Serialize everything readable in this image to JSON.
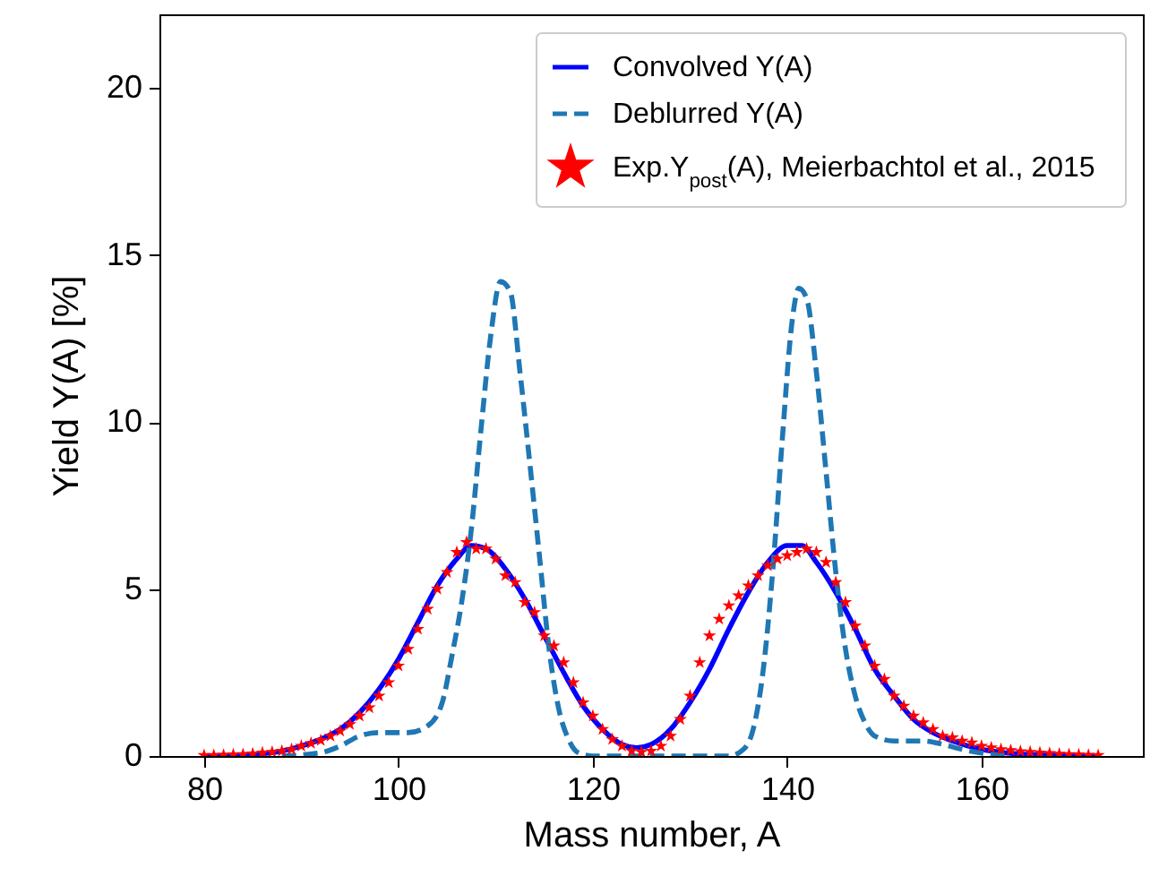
{
  "chart_data": {
    "type": "line",
    "xlabel": "Mass number, A",
    "ylabel": "Yield Y(A) [%]",
    "xlim": [
      75.4,
      176.6
    ],
    "ylim": [
      0,
      22.2
    ],
    "xticks": [
      80,
      100,
      120,
      140,
      160
    ],
    "yticks": [
      0,
      5,
      10,
      15,
      20
    ],
    "grid": false,
    "legend": "top right",
    "series": [
      {
        "name": "Convolved Y(A)",
        "marker": "none",
        "line_style": "solid",
        "color": "#0000ff",
        "x": [
          80,
          85,
          88,
          90,
          92,
          94,
          96,
          98,
          100,
          102,
          104,
          106,
          107.5,
          109,
          111,
          113,
          115,
          117,
          119,
          121,
          123,
          124.5,
          126,
          128,
          130,
          132,
          134,
          136,
          138,
          140,
          141.5,
          143,
          145,
          147,
          149,
          151,
          153,
          155,
          157,
          160,
          163,
          166,
          172
        ],
        "values": [
          0,
          0.05,
          0.15,
          0.3,
          0.5,
          0.8,
          1.3,
          2.0,
          2.9,
          4.0,
          5.1,
          5.9,
          6.3,
          6.2,
          5.6,
          4.7,
          3.6,
          2.5,
          1.5,
          0.8,
          0.35,
          0.25,
          0.35,
          0.8,
          1.6,
          2.6,
          3.8,
          4.9,
          5.8,
          6.3,
          6.3,
          5.8,
          4.9,
          3.8,
          2.6,
          1.8,
          1.1,
          0.7,
          0.45,
          0.2,
          0.08,
          0.03,
          0
        ]
      },
      {
        "name": "Deblurred Y(A)",
        "marker": "none",
        "line_style": "dashed",
        "color": "#1f77b4",
        "x": [
          88,
          92,
          94,
          96,
          98,
          101,
          103,
          104.5,
          105.5,
          106.5,
          107.5,
          108.5,
          109.5,
          110.5,
          111.5,
          112.5,
          113.5,
          114.5,
          115.5,
          116.5,
          117.5,
          118.5,
          120,
          134,
          135.5,
          136.5,
          137.5,
          138.5,
          139.5,
          140.5,
          141.2,
          142,
          143,
          144,
          145,
          146,
          147,
          148,
          149,
          151,
          154,
          156,
          158,
          161,
          163
        ],
        "values": [
          0,
          0.1,
          0.3,
          0.6,
          0.7,
          0.7,
          0.9,
          1.6,
          3.0,
          4.6,
          6.8,
          9.8,
          12.6,
          14.2,
          13.9,
          11.5,
          8.8,
          6.0,
          3.2,
          1.4,
          0.5,
          0.1,
          0,
          0,
          0.2,
          0.8,
          2.5,
          5.5,
          9.5,
          13,
          14,
          13.7,
          11.5,
          8.5,
          5.5,
          3.2,
          1.8,
          1.0,
          0.6,
          0.45,
          0.45,
          0.35,
          0.2,
          0.05,
          0
        ]
      },
      {
        "name": "Exp.Y$_{post}$(A), Meierbachtol et al., 2015",
        "type": "scatter",
        "marker": "star",
        "color": "#ff0000",
        "x": [
          80,
          81,
          82,
          83,
          84,
          85,
          86,
          87,
          88,
          89,
          90,
          91,
          92,
          93,
          94,
          95,
          96,
          97,
          98,
          99,
          100,
          101,
          102,
          103,
          104,
          105,
          106,
          107,
          108,
          109,
          110,
          111,
          112,
          113,
          114,
          115,
          116,
          117,
          118,
          119,
          120,
          121,
          122,
          123,
          124,
          125,
          126,
          127,
          128,
          129,
          130,
          131,
          132,
          133,
          134,
          135,
          136,
          137,
          138,
          139,
          140,
          141,
          142,
          143,
          144,
          145,
          146,
          147,
          148,
          149,
          150,
          151,
          152,
          153,
          154,
          155,
          156,
          157,
          158,
          159,
          160,
          161,
          162,
          163,
          164,
          165,
          166,
          167,
          168,
          169,
          170,
          171,
          172
        ],
        "values": [
          0.02,
          0.02,
          0.03,
          0.04,
          0.05,
          0.07,
          0.1,
          0.12,
          0.15,
          0.2,
          0.3,
          0.38,
          0.47,
          0.6,
          0.75,
          0.95,
          1.2,
          1.45,
          1.8,
          2.2,
          2.7,
          3.2,
          3.8,
          4.4,
          5.0,
          5.5,
          6.1,
          6.4,
          6.2,
          6.2,
          5.9,
          5.4,
          5.2,
          4.6,
          4.3,
          3.6,
          3.3,
          2.8,
          2.2,
          1.6,
          1.2,
          0.8,
          0.5,
          0.3,
          0.15,
          0.12,
          0.15,
          0.3,
          0.6,
          1.1,
          1.8,
          2.8,
          3.6,
          4.1,
          4.5,
          4.8,
          5.1,
          5.4,
          5.7,
          5.9,
          6.0,
          6.1,
          6.2,
          6.1,
          5.8,
          5.2,
          4.6,
          3.9,
          3.3,
          2.7,
          2.3,
          1.8,
          1.5,
          1.2,
          1.0,
          0.8,
          0.6,
          0.55,
          0.45,
          0.4,
          0.3,
          0.25,
          0.2,
          0.17,
          0.14,
          0.12,
          0.1,
          0.08,
          0.06,
          0.05,
          0.04,
          0.03,
          0.02
        ]
      }
    ]
  }
}
